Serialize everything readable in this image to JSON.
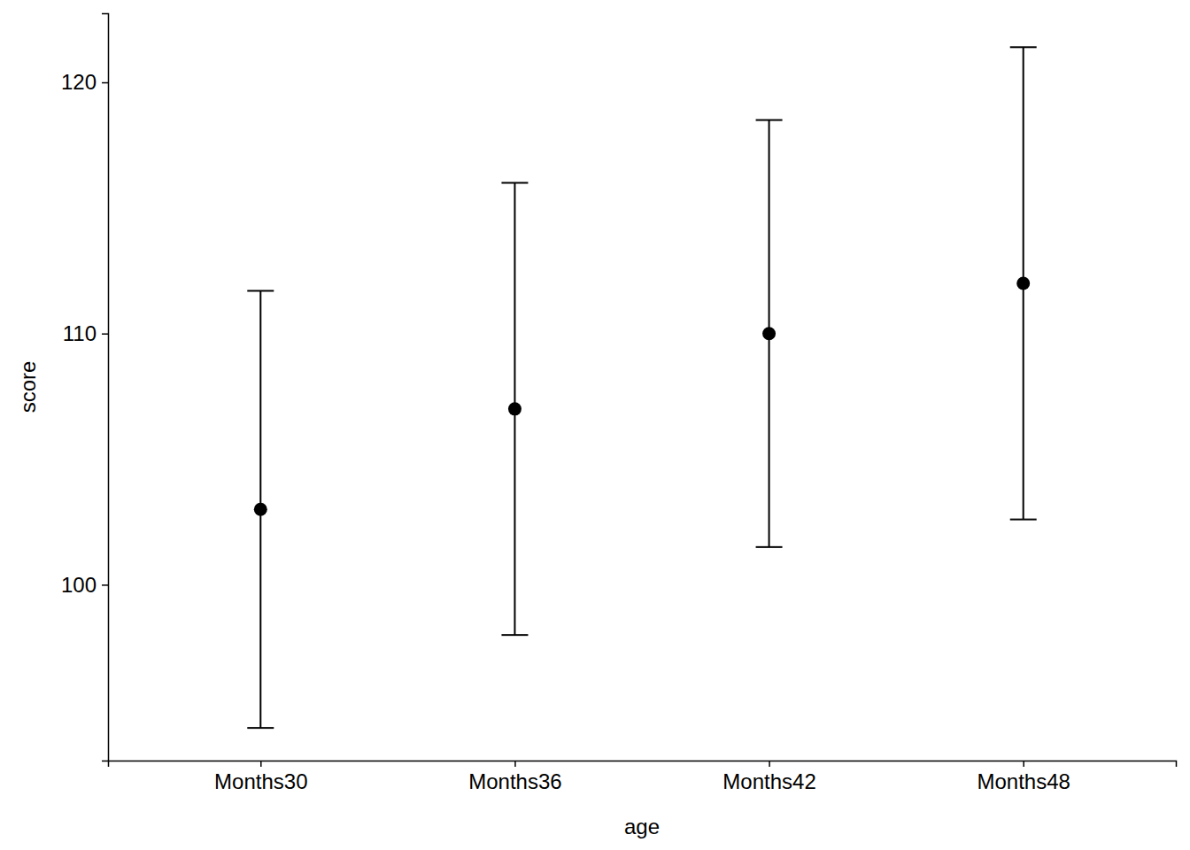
{
  "chart_data": {
    "type": "scatter",
    "x_label": "age",
    "y_label": "score",
    "categories": [
      "Months30",
      "Months36",
      "Months42",
      "Months48"
    ],
    "values": [
      103,
      107,
      110,
      112
    ],
    "error": [
      8.7,
      9.0,
      8.5,
      9.4
    ],
    "color": "#000000",
    "marker": "circle",
    "ylim": [
      93.0,
      122.75
    ],
    "yticks": [
      100,
      110,
      120
    ],
    "grid": false
  }
}
